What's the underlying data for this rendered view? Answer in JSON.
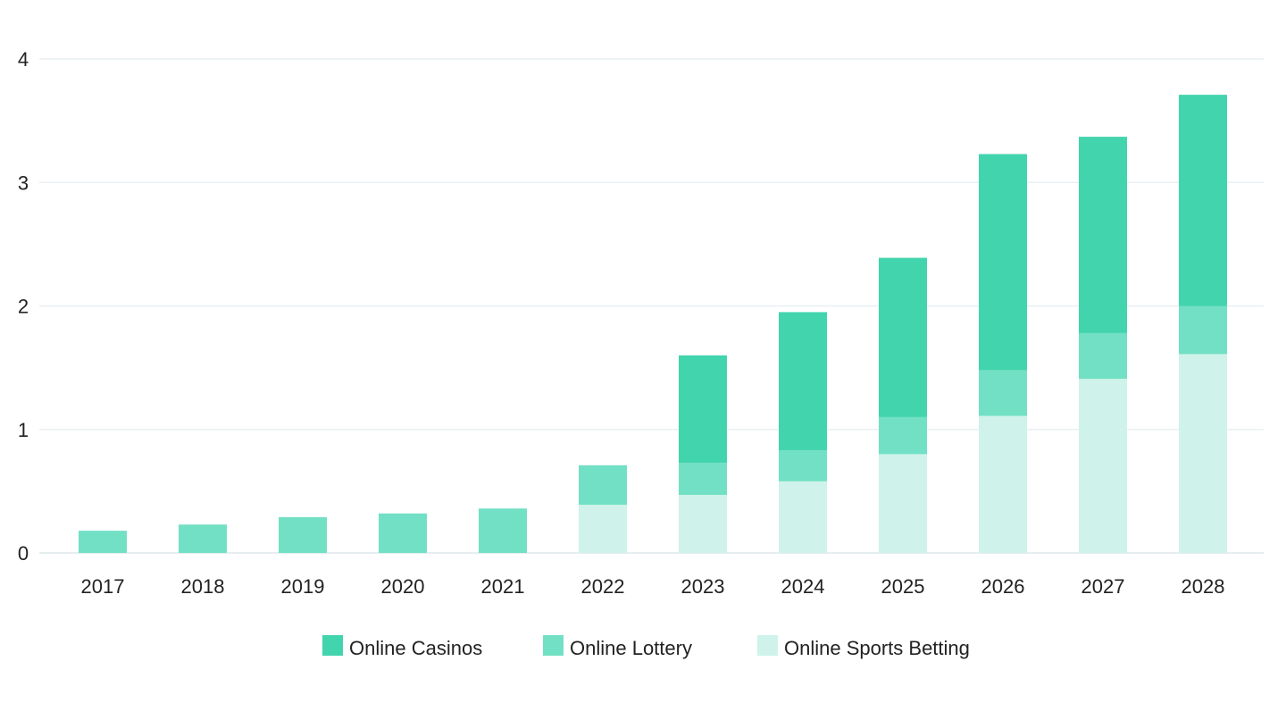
{
  "chart_data": {
    "type": "bar",
    "stacked": true,
    "title": "",
    "xlabel": "",
    "ylabel": "",
    "categories": [
      "2017",
      "2018",
      "2019",
      "2020",
      "2021",
      "2022",
      "2023",
      "2024",
      "2025",
      "2026",
      "2027",
      "2028"
    ],
    "series": [
      {
        "name": "Online Sports Betting",
        "color": "#cff3ea",
        "values": [
          0,
          0,
          0,
          0,
          0,
          0.39,
          0.47,
          0.58,
          0.8,
          1.11,
          1.41,
          1.61
        ]
      },
      {
        "name": "Online Lottery",
        "color": "#72e0c4",
        "values": [
          0.18,
          0.23,
          0.29,
          0.32,
          0.36,
          0.32,
          0.26,
          0.25,
          0.3,
          0.37,
          0.37,
          0.39
        ]
      },
      {
        "name": "Online Casinos",
        "color": "#42d4ad",
        "values": [
          0,
          0,
          0,
          0,
          0,
          0,
          0.87,
          1.12,
          1.29,
          1.75,
          1.59,
          1.71
        ]
      }
    ],
    "ylim": [
      0,
      4
    ],
    "yticks": [
      0,
      1,
      2,
      3,
      4
    ],
    "grid": true,
    "legend": {
      "position": "bottom-center",
      "order": [
        "Online Casinos",
        "Online Lottery",
        "Online Sports Betting"
      ]
    }
  }
}
